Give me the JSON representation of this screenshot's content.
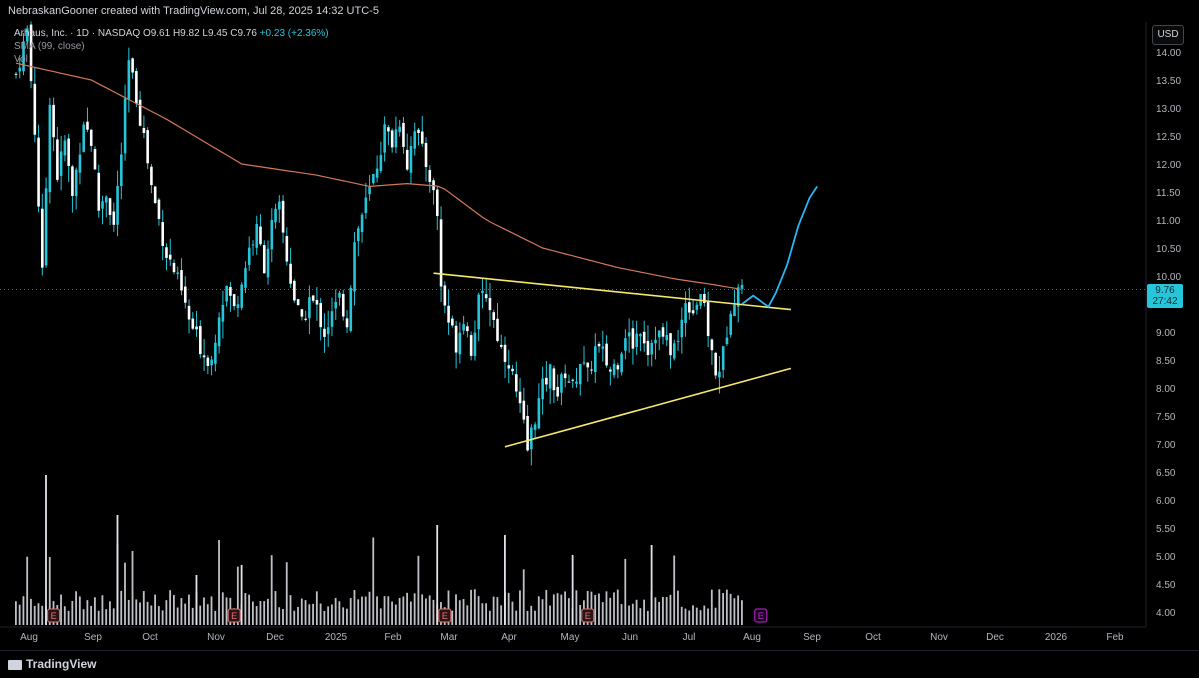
{
  "header": {
    "credit": "NebraskanGooner created with TradingView.com, Jul 28, 2025 14:32 UTC-5"
  },
  "legend": {
    "symbol": "Arhaus, Inc. · 1D · NASDAQ",
    "ohlc": "O9.61 H9.82 L9.45 C9.76",
    "change": "+0.23 (+2.36%)",
    "sma": "SMA (99, close)",
    "vol": "Vol"
  },
  "price_scale": {
    "currency": "USD",
    "last_price": "9.76",
    "countdown": "27:42"
  },
  "footer": {
    "brand": "TradingView"
  },
  "colors": {
    "up": "#26c6da",
    "down": "#26c6da",
    "sma": "#d4785a",
    "trendline": "#f5e96b",
    "projection": "#29b6f6",
    "earnings_past": "#e57373",
    "earnings_future": "#c026d3"
  },
  "chart_data": {
    "type": "candlestick",
    "y_ticks": [
      "14.00",
      "13.50",
      "13.00",
      "12.50",
      "12.00",
      "11.50",
      "11.00",
      "10.50",
      "10.00",
      "9.50",
      "9.00",
      "8.50",
      "8.00",
      "7.50",
      "7.00",
      "6.50",
      "6.00",
      "5.50",
      "5.00",
      "4.50",
      "4.00"
    ],
    "ylim": [
      3.8,
      14.4
    ],
    "x_ticks": [
      "Aug",
      "Sep",
      "Oct",
      "Nov",
      "Dec",
      "2025",
      "Feb",
      "Mar",
      "Apr",
      "May",
      "Jun",
      "Jul",
      "Aug",
      "Sep",
      "Oct",
      "Nov",
      "Dec",
      "2026",
      "Feb"
    ],
    "last_price": 9.76,
    "price_path": [
      [
        0,
        13.6
      ],
      [
        3,
        14.4
      ],
      [
        5,
        12.6
      ],
      [
        7,
        10.0
      ],
      [
        9,
        13.2
      ],
      [
        11,
        11.8
      ],
      [
        13,
        12.4
      ],
      [
        15,
        11.4
      ],
      [
        18,
        12.8
      ],
      [
        20,
        12.4
      ],
      [
        22,
        11.2
      ],
      [
        24,
        11.5
      ],
      [
        26,
        10.9
      ],
      [
        28,
        12.2
      ],
      [
        30,
        13.8
      ],
      [
        32,
        13.2
      ],
      [
        34,
        12.5
      ],
      [
        36,
        11.6
      ],
      [
        38,
        11.0
      ],
      [
        40,
        10.4
      ],
      [
        42,
        10.1
      ],
      [
        44,
        9.7
      ],
      [
        46,
        9.2
      ],
      [
        48,
        8.9
      ],
      [
        50,
        8.6
      ],
      [
        52,
        8.5
      ],
      [
        54,
        9.4
      ],
      [
        56,
        9.8
      ],
      [
        58,
        9.4
      ],
      [
        60,
        9.9
      ],
      [
        62,
        10.5
      ],
      [
        64,
        10.8
      ],
      [
        66,
        10.2
      ],
      [
        68,
        10.9
      ],
      [
        70,
        11.2
      ],
      [
        72,
        10.3
      ],
      [
        74,
        9.6
      ],
      [
        76,
        9.1
      ],
      [
        78,
        9.6
      ],
      [
        80,
        9.4
      ],
      [
        82,
        9.0
      ],
      [
        84,
        9.3
      ],
      [
        86,
        9.6
      ],
      [
        88,
        9.2
      ],
      [
        90,
        10.6
      ],
      [
        92,
        11.1
      ],
      [
        94,
        11.5
      ],
      [
        96,
        12.0
      ],
      [
        98,
        12.6
      ],
      [
        100,
        12.4
      ],
      [
        102,
        12.8
      ],
      [
        104,
        12.0
      ],
      [
        106,
        12.7
      ],
      [
        108,
        12.2
      ],
      [
        110,
        11.8
      ],
      [
        112,
        11.1
      ],
      [
        113,
        9.8
      ],
      [
        115,
        9.2
      ],
      [
        117,
        8.8
      ],
      [
        119,
        9.3
      ],
      [
        121,
        8.7
      ],
      [
        123,
        9.5
      ],
      [
        125,
        9.7
      ],
      [
        127,
        9.2
      ],
      [
        129,
        8.7
      ],
      [
        131,
        8.5
      ],
      [
        133,
        7.9
      ],
      [
        135,
        7.3
      ],
      [
        136,
        6.9
      ],
      [
        138,
        7.5
      ],
      [
        140,
        8.0
      ],
      [
        142,
        8.3
      ],
      [
        144,
        7.9
      ],
      [
        146,
        8.3
      ],
      [
        148,
        8.0
      ],
      [
        150,
        8.5
      ],
      [
        152,
        8.2
      ],
      [
        154,
        8.7
      ],
      [
        156,
        8.6
      ],
      [
        158,
        8.3
      ],
      [
        160,
        8.5
      ],
      [
        162,
        9.0
      ],
      [
        164,
        8.8
      ],
      [
        166,
        9.1
      ],
      [
        168,
        8.7
      ],
      [
        170,
        9.0
      ],
      [
        172,
        8.9
      ],
      [
        174,
        8.7
      ],
      [
        176,
        8.8
      ],
      [
        178,
        9.6
      ],
      [
        180,
        9.4
      ],
      [
        182,
        9.7
      ],
      [
        184,
        9.0
      ],
      [
        186,
        8.2
      ],
      [
        188,
        8.6
      ],
      [
        190,
        9.5
      ],
      [
        192,
        9.8
      ],
      [
        193,
        9.76
      ]
    ],
    "sma_path": [
      [
        0,
        13.8
      ],
      [
        20,
        13.5
      ],
      [
        40,
        12.8
      ],
      [
        60,
        12.0
      ],
      [
        80,
        11.8
      ],
      [
        94,
        11.6
      ],
      [
        104,
        11.65
      ],
      [
        113,
        11.6
      ],
      [
        125,
        11.0
      ],
      [
        140,
        10.5
      ],
      [
        160,
        10.15
      ],
      [
        175,
        9.95
      ],
      [
        185,
        9.85
      ],
      [
        193,
        9.76
      ]
    ],
    "trendlines": [
      {
        "from": [
          111,
          10.05
        ],
        "to": [
          206,
          9.4
        ]
      },
      {
        "from": [
          130,
          6.95
        ],
        "to": [
          206,
          8.35
        ]
      }
    ],
    "projection_path": [
      [
        193,
        9.5
      ],
      [
        196,
        9.65
      ],
      [
        198,
        9.55
      ],
      [
        200,
        9.45
      ],
      [
        202,
        9.7
      ],
      [
        205,
        10.2
      ],
      [
        208,
        10.9
      ],
      [
        211,
        11.4
      ],
      [
        213,
        11.6
      ]
    ],
    "earnings_markers": [
      {
        "label": "E",
        "index": 10,
        "state": "past"
      },
      {
        "label": "E",
        "index": 58,
        "state": "past"
      },
      {
        "label": "E",
        "index": 114,
        "state": "past"
      },
      {
        "label": "E",
        "index": 152,
        "state": "past"
      },
      {
        "label": "E",
        "index": 198,
        "state": "future"
      }
    ],
    "volume_scale_max": 1.0
  }
}
